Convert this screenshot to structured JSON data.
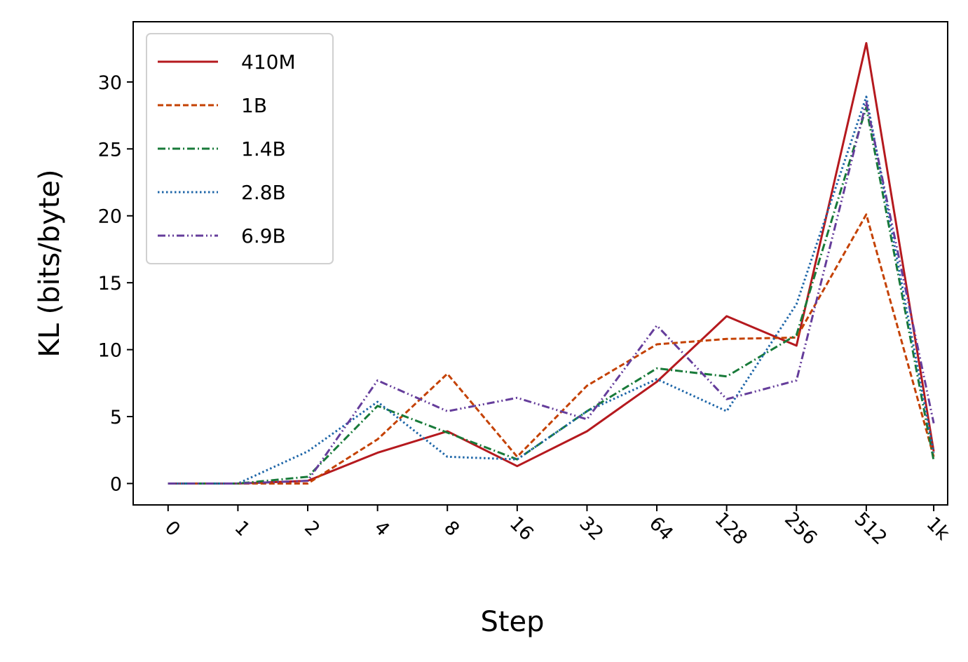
{
  "chart_data": {
    "type": "line",
    "title": "",
    "xlabel": "Step",
    "ylabel": "KL (bits/byte)",
    "x": [
      0,
      1,
      2,
      4,
      8,
      16,
      32,
      64,
      128,
      256,
      512,
      1000
    ],
    "x_tick_labels": [
      "0",
      "1",
      "2",
      "4",
      "8",
      "16",
      "32",
      "64",
      "128",
      "256",
      "512",
      "1k"
    ],
    "xscale": "symlog",
    "y_ticks": [
      0,
      5,
      10,
      15,
      20,
      25,
      30
    ],
    "ylim": [
      -1.6,
      34.5
    ],
    "grid": false,
    "legend_position": "top-left",
    "series": [
      {
        "name": "410M",
        "color": "#b5191e",
        "dash": "solid",
        "values": [
          0,
          0,
          0.2,
          2.3,
          3.9,
          1.3,
          3.9,
          7.6,
          12.5,
          10.3,
          32.9,
          2.4
        ]
      },
      {
        "name": "1B",
        "color": "#c44102",
        "dash": "dashed",
        "values": [
          0,
          0,
          0,
          3.3,
          8.2,
          2.0,
          7.3,
          10.4,
          10.8,
          10.9,
          20.1,
          2.0
        ]
      },
      {
        "name": "1.4B",
        "color": "#187a39",
        "dash": "dashdot",
        "values": [
          0,
          0,
          0.5,
          5.8,
          3.8,
          1.8,
          5.4,
          8.6,
          8.0,
          11.1,
          28.1,
          1.7
        ]
      },
      {
        "name": "2.8B",
        "color": "#1e66a8",
        "dash": "dotted",
        "values": [
          0,
          0,
          2.4,
          6.1,
          2.0,
          1.8,
          5.4,
          7.8,
          5.4,
          13.4,
          28.9,
          2.3
        ]
      },
      {
        "name": "6.9B",
        "color": "#653d9b",
        "dash": "dashdotdot",
        "values": [
          0,
          0,
          0.2,
          7.7,
          5.4,
          6.4,
          4.8,
          11.8,
          6.3,
          7.7,
          28.5,
          4.5
        ]
      }
    ]
  }
}
